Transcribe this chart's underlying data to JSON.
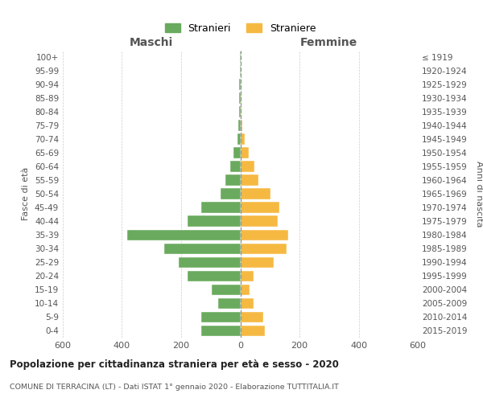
{
  "age_groups": [
    "100+",
    "95-99",
    "90-94",
    "85-89",
    "80-84",
    "75-79",
    "70-74",
    "65-69",
    "60-64",
    "55-59",
    "50-54",
    "45-49",
    "40-44",
    "35-39",
    "30-34",
    "25-29",
    "20-24",
    "15-19",
    "10-14",
    "5-9",
    "0-4"
  ],
  "birth_years": [
    "≤ 1919",
    "1920-1924",
    "1925-1929",
    "1930-1934",
    "1935-1939",
    "1940-1944",
    "1945-1949",
    "1950-1954",
    "1955-1959",
    "1960-1964",
    "1965-1969",
    "1970-1974",
    "1975-1979",
    "1980-1984",
    "1985-1989",
    "1990-1994",
    "1995-1999",
    "2000-2004",
    "2005-2009",
    "2010-2014",
    "2015-2019"
  ],
  "maschi": [
    1,
    1,
    3,
    3,
    4,
    6,
    9,
    22,
    33,
    50,
    68,
    132,
    178,
    382,
    258,
    208,
    178,
    96,
    76,
    132,
    132
  ],
  "femmine": [
    1,
    1,
    2,
    3,
    5,
    6,
    16,
    28,
    48,
    62,
    102,
    132,
    127,
    162,
    157,
    112,
    46,
    31,
    46,
    77,
    82
  ],
  "maschi_color": "#6aaa5e",
  "femmine_color": "#f5b942",
  "title": "Popolazione per cittadinanza straniera per età e sesso - 2020",
  "subtitle": "COMUNE DI TERRACINA (LT) - Dati ISTAT 1° gennaio 2020 - Elaborazione TUTTITALIA.IT",
  "xlabel_left": "Maschi",
  "xlabel_right": "Femmine",
  "ylabel_left": "Fasce di età",
  "ylabel_right": "Anni di nascita",
  "legend_maschi": "Stranieri",
  "legend_femmine": "Straniere",
  "xlim": 600,
  "background_color": "#ffffff",
  "grid_color": "#cccccc"
}
